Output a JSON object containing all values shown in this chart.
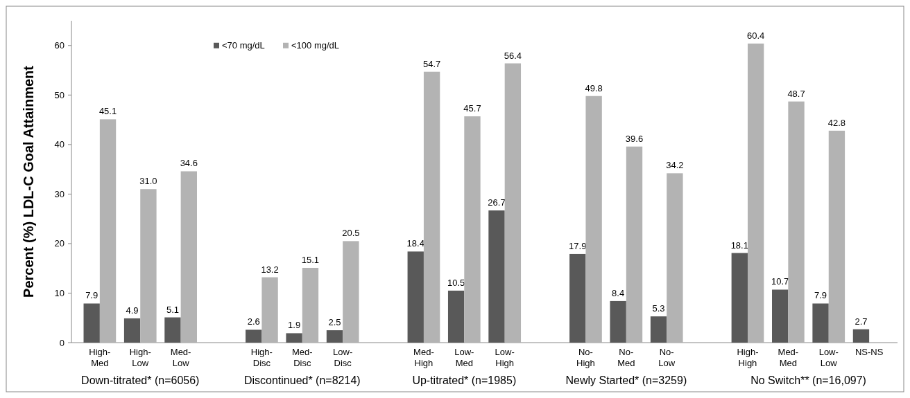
{
  "chart_data": {
    "type": "bar",
    "ylabel": "Percent (%)  LDL-C Goal Attainment",
    "categories": [
      "High-Med",
      "High-Low",
      "Med-Low",
      null,
      "High-Disc",
      "Med-Disc",
      "Low-Disc",
      null,
      "Med-High",
      "Low-Med",
      "Low-High",
      null,
      "No-High",
      "No-Med",
      "No-Low",
      null,
      "High-High",
      "Med-Med",
      "Low-Low",
      "NS-NS"
    ],
    "series": [
      {
        "name": "<70 mg/dL",
        "color": "#595959",
        "values": [
          7.9,
          4.9,
          5.1,
          null,
          2.6,
          1.9,
          2.5,
          null,
          18.4,
          10.5,
          26.7,
          null,
          17.9,
          8.4,
          5.3,
          null,
          18.1,
          10.7,
          7.9,
          2.7
        ]
      },
      {
        "name": "<100 mg/dL",
        "color": "#b3b3b3",
        "values": [
          45.1,
          31.0,
          34.6,
          null,
          13.2,
          15.1,
          20.5,
          null,
          54.7,
          45.7,
          56.4,
          null,
          49.8,
          39.6,
          34.2,
          null,
          60.4,
          48.7,
          42.8,
          null
        ]
      }
    ],
    "value_labels": [
      [
        "7.9",
        "4.9",
        "5.1",
        null,
        "2.6",
        "1.9",
        "2.5",
        null,
        "18.4",
        "10.5",
        "26.7",
        null,
        "17.9",
        "8.4",
        "5.3",
        null,
        "18.1",
        "10.7",
        "7.9",
        "2.7"
      ],
      [
        "45.1",
        "31.0",
        "34.6",
        null,
        "13.2",
        "15.1",
        "20.5",
        null,
        "54.7",
        "45.7",
        "56.4",
        null,
        "49.8",
        "39.6",
        "34.2",
        null,
        "60.4",
        "48.7",
        "42.8",
        null
      ]
    ],
    "annotations": [
      "Down-titrated* (n=6056)",
      "Discontinued* (n=8214)",
      "Up-titrated* (n=1985)",
      "Newly Started* (n=3259)",
      "No Switch** (n=16,097)"
    ],
    "ylim": [
      0,
      65
    ],
    "yticks": [
      0,
      10,
      20,
      30,
      40,
      50,
      60
    ],
    "legend": "top left",
    "grid": false
  }
}
